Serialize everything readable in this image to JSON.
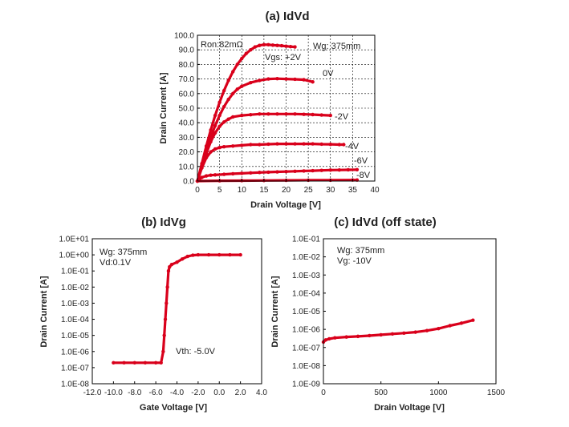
{
  "chart_data": [
    {
      "id": "a",
      "type": "line",
      "title": "(a) IdVd",
      "xlabel": "Drain Voltage [V]",
      "ylabel": "Drain Current [A]",
      "xlim": [
        0,
        40
      ],
      "ylim": [
        0,
        100
      ],
      "xticks": [
        0,
        5,
        10,
        15,
        20,
        25,
        30,
        35,
        40
      ],
      "yticks": [
        0,
        10,
        20,
        30,
        40,
        50,
        60,
        70,
        80,
        90,
        100
      ],
      "xtick_labels": [
        "0",
        "5",
        "10",
        "15",
        "20",
        "25",
        "30",
        "35",
        "40"
      ],
      "ytick_labels": [
        "0.0",
        "10.0",
        "20.0",
        "30.0",
        "40.0",
        "50.0",
        "60.0",
        "70.0",
        "80.0",
        "90.0",
        "100.0"
      ],
      "grid": true,
      "annotations": [
        "Ron:82mΩ",
        "Wg: 375mm"
      ],
      "series": [
        {
          "label": "Vgs: +2V",
          "x": [
            0,
            1,
            2,
            3,
            4,
            5,
            6,
            7,
            8,
            9,
            10,
            11,
            12,
            13,
            14,
            15,
            16,
            17,
            18,
            19,
            20,
            21,
            22
          ],
          "y": [
            0,
            12,
            24,
            35,
            45,
            54,
            62,
            69,
            75,
            80,
            84,
            87.5,
            90,
            92,
            93,
            93.5,
            93.5,
            93.2,
            93,
            92.8,
            92.5,
            92.2,
            92
          ]
        },
        {
          "label": "0V",
          "x": [
            0,
            1,
            2,
            3,
            4,
            5,
            6,
            7,
            8,
            9,
            10,
            12,
            14,
            16,
            18,
            20,
            22,
            24,
            26
          ],
          "y": [
            0,
            11,
            21,
            30,
            38,
            45,
            51,
            56,
            60,
            63,
            65,
            67.5,
            69,
            70,
            70.2,
            70,
            69.8,
            69.5,
            68
          ]
        },
        {
          "label": "-2V",
          "x": [
            0,
            1,
            2,
            3,
            4,
            5,
            6,
            7,
            8,
            10,
            12,
            14,
            16,
            18,
            20,
            22,
            24,
            26,
            28,
            30
          ],
          "y": [
            0,
            10,
            19,
            27,
            33,
            37.5,
            40.5,
            42.5,
            44,
            45,
            45.5,
            46,
            46,
            46,
            46,
            46,
            45.8,
            45.6,
            45.3,
            45
          ]
        },
        {
          "label": "-4V",
          "x": [
            0,
            1,
            2,
            3,
            4,
            5,
            6,
            8,
            10,
            12,
            14,
            16,
            18,
            20,
            22,
            24,
            26,
            28,
            30,
            32,
            33
          ],
          "y": [
            0,
            9,
            16,
            20,
            22,
            23,
            23.5,
            24,
            24.5,
            25,
            25,
            25.3,
            25.5,
            25.5,
            25.5,
            25.5,
            25.5,
            25.3,
            25.2,
            25,
            25
          ]
        },
        {
          "label": "-6V",
          "x": [
            0,
            1,
            2,
            3,
            4,
            6,
            8,
            10,
            12,
            14,
            16,
            18,
            20,
            22,
            24,
            26,
            28,
            30,
            32,
            34,
            36
          ],
          "y": [
            0,
            2.5,
            3.5,
            4,
            4.2,
            4.6,
            5,
            5.3,
            5.6,
            5.9,
            6.1,
            6.3,
            6.5,
            6.7,
            6.9,
            7.1,
            7.3,
            7.5,
            7.6,
            7.7,
            7.8
          ]
        },
        {
          "label": "-8V",
          "x": [
            0,
            5,
            10,
            15,
            20,
            25,
            30,
            35,
            36
          ],
          "y": [
            0,
            0.2,
            0.3,
            0.4,
            0.5,
            0.6,
            0.6,
            0.7,
            0.7
          ]
        }
      ]
    },
    {
      "id": "b",
      "type": "line",
      "title": "(b) IdVg",
      "xlabel": "Gate Voltage [V]",
      "ylabel": "Drain Current [A]",
      "xlim": [
        -12,
        4
      ],
      "ylog": true,
      "ylim": [
        1e-08,
        10
      ],
      "xticks": [
        -12,
        -10,
        -8,
        -6,
        -4,
        -2,
        0,
        2,
        4
      ],
      "yticks": [
        1e-08,
        1e-07,
        1e-06,
        1e-05,
        0.0001,
        0.001,
        0.01,
        0.1,
        1,
        10
      ],
      "xtick_labels": [
        "-12.0",
        "-10.0",
        "-8.0",
        "-6.0",
        "-4.0",
        "-2.0",
        "0.0",
        "2.0",
        "4.0"
      ],
      "ytick_labels": [
        "1.0E-08",
        "1.0E-07",
        "1.0E-06",
        "1.0E-05",
        "1.0E-04",
        "1.0E-03",
        "1.0E-02",
        "1.0E-01",
        "1.0E+00",
        "1.0E+01"
      ],
      "grid": false,
      "annotations": [
        "Wg: 375mm",
        "Vd:0.1V",
        "Vth: -5.0V"
      ],
      "series": [
        {
          "x": [
            -10,
            -9,
            -8,
            -7,
            -6,
            -5.5,
            -5.3,
            -5.2,
            -5.1,
            -5.0,
            -4.9,
            -4.8,
            -4.7,
            -4.5,
            -4.0,
            -3.5,
            -3.0,
            -2.5,
            -2.0,
            -1.0,
            0,
            1,
            2
          ],
          "y": [
            2e-07,
            2e-07,
            2e-07,
            2e-07,
            2e-07,
            2e-07,
            1e-06,
            1e-05,
            0.0001,
            0.001,
            0.01,
            0.1,
            0.18,
            0.25,
            0.35,
            0.55,
            0.8,
            0.95,
            1.0,
            1.0,
            1.0,
            1.0,
            1.0
          ]
        }
      ]
    },
    {
      "id": "c",
      "type": "line",
      "title": "(c) IdVd (off state)",
      "xlabel": "Drain Voltage [V]",
      "ylabel": "Drain Current [A]",
      "xlim": [
        0,
        1500
      ],
      "ylog": true,
      "ylim": [
        1e-09,
        0.1
      ],
      "xticks": [
        0,
        500,
        1000,
        1500
      ],
      "yticks": [
        1e-09,
        1e-08,
        1e-07,
        1e-06,
        1e-05,
        0.0001,
        0.001,
        0.01,
        0.1
      ],
      "xtick_labels": [
        "0",
        "500",
        "1000",
        "1500"
      ],
      "ytick_labels": [
        "1.0E-09",
        "1.0E-08",
        "1.0E-07",
        "1.0E-06",
        "1.0E-05",
        "1.0E-04",
        "1.0E-03",
        "1.0E-02",
        "1.0E-01"
      ],
      "grid": false,
      "annotations": [
        "Wg: 375mm",
        "Vg: -10V"
      ],
      "series": [
        {
          "x": [
            0,
            20,
            50,
            100,
            200,
            300,
            400,
            500,
            600,
            700,
            800,
            900,
            1000,
            1100,
            1200,
            1300
          ],
          "y": [
            2e-07,
            2.6e-07,
            3e-07,
            3.4e-07,
            3.8e-07,
            4.1e-07,
            4.5e-07,
            5e-07,
            5.6e-07,
            6.2e-07,
            7e-07,
            8.5e-07,
            1.1e-06,
            1.6e-06,
            2.2e-06,
            3.2e-06
          ]
        }
      ]
    }
  ],
  "colors": {
    "curve": "#d9001b",
    "axis": "#000000",
    "text": "#222222"
  }
}
